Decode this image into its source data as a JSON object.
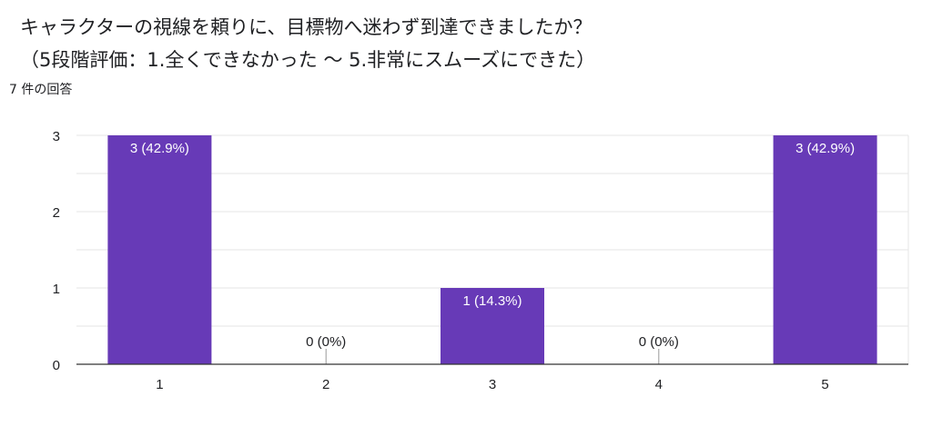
{
  "question": {
    "line1": "キャラクターの視線を頼りに、目標物へ迷わず到達できましたか？",
    "line2": "（5段階評価：1.全くできなかった 〜 5.非常にスムーズにできた）"
  },
  "response_count": "7 件の回答",
  "colors": {
    "bar": "#673ab7",
    "grid": "#e6e6e6",
    "axis": "#333333",
    "text": "#202124",
    "label_on_bar": "#ffffff"
  },
  "chart_data": {
    "type": "bar",
    "title": "",
    "xlabel": "",
    "ylabel": "",
    "categories": [
      "1",
      "2",
      "3",
      "4",
      "5"
    ],
    "values": [
      3,
      0,
      1,
      0,
      3
    ],
    "data_labels": [
      "3 (42.9%)",
      "0 (0%)",
      "1 (14.3%)",
      "0 (0%)",
      "3 (42.9%)"
    ],
    "y_ticks": [
      "0",
      "1",
      "2",
      "3"
    ],
    "ylim": [
      0,
      3
    ],
    "grid": true
  }
}
